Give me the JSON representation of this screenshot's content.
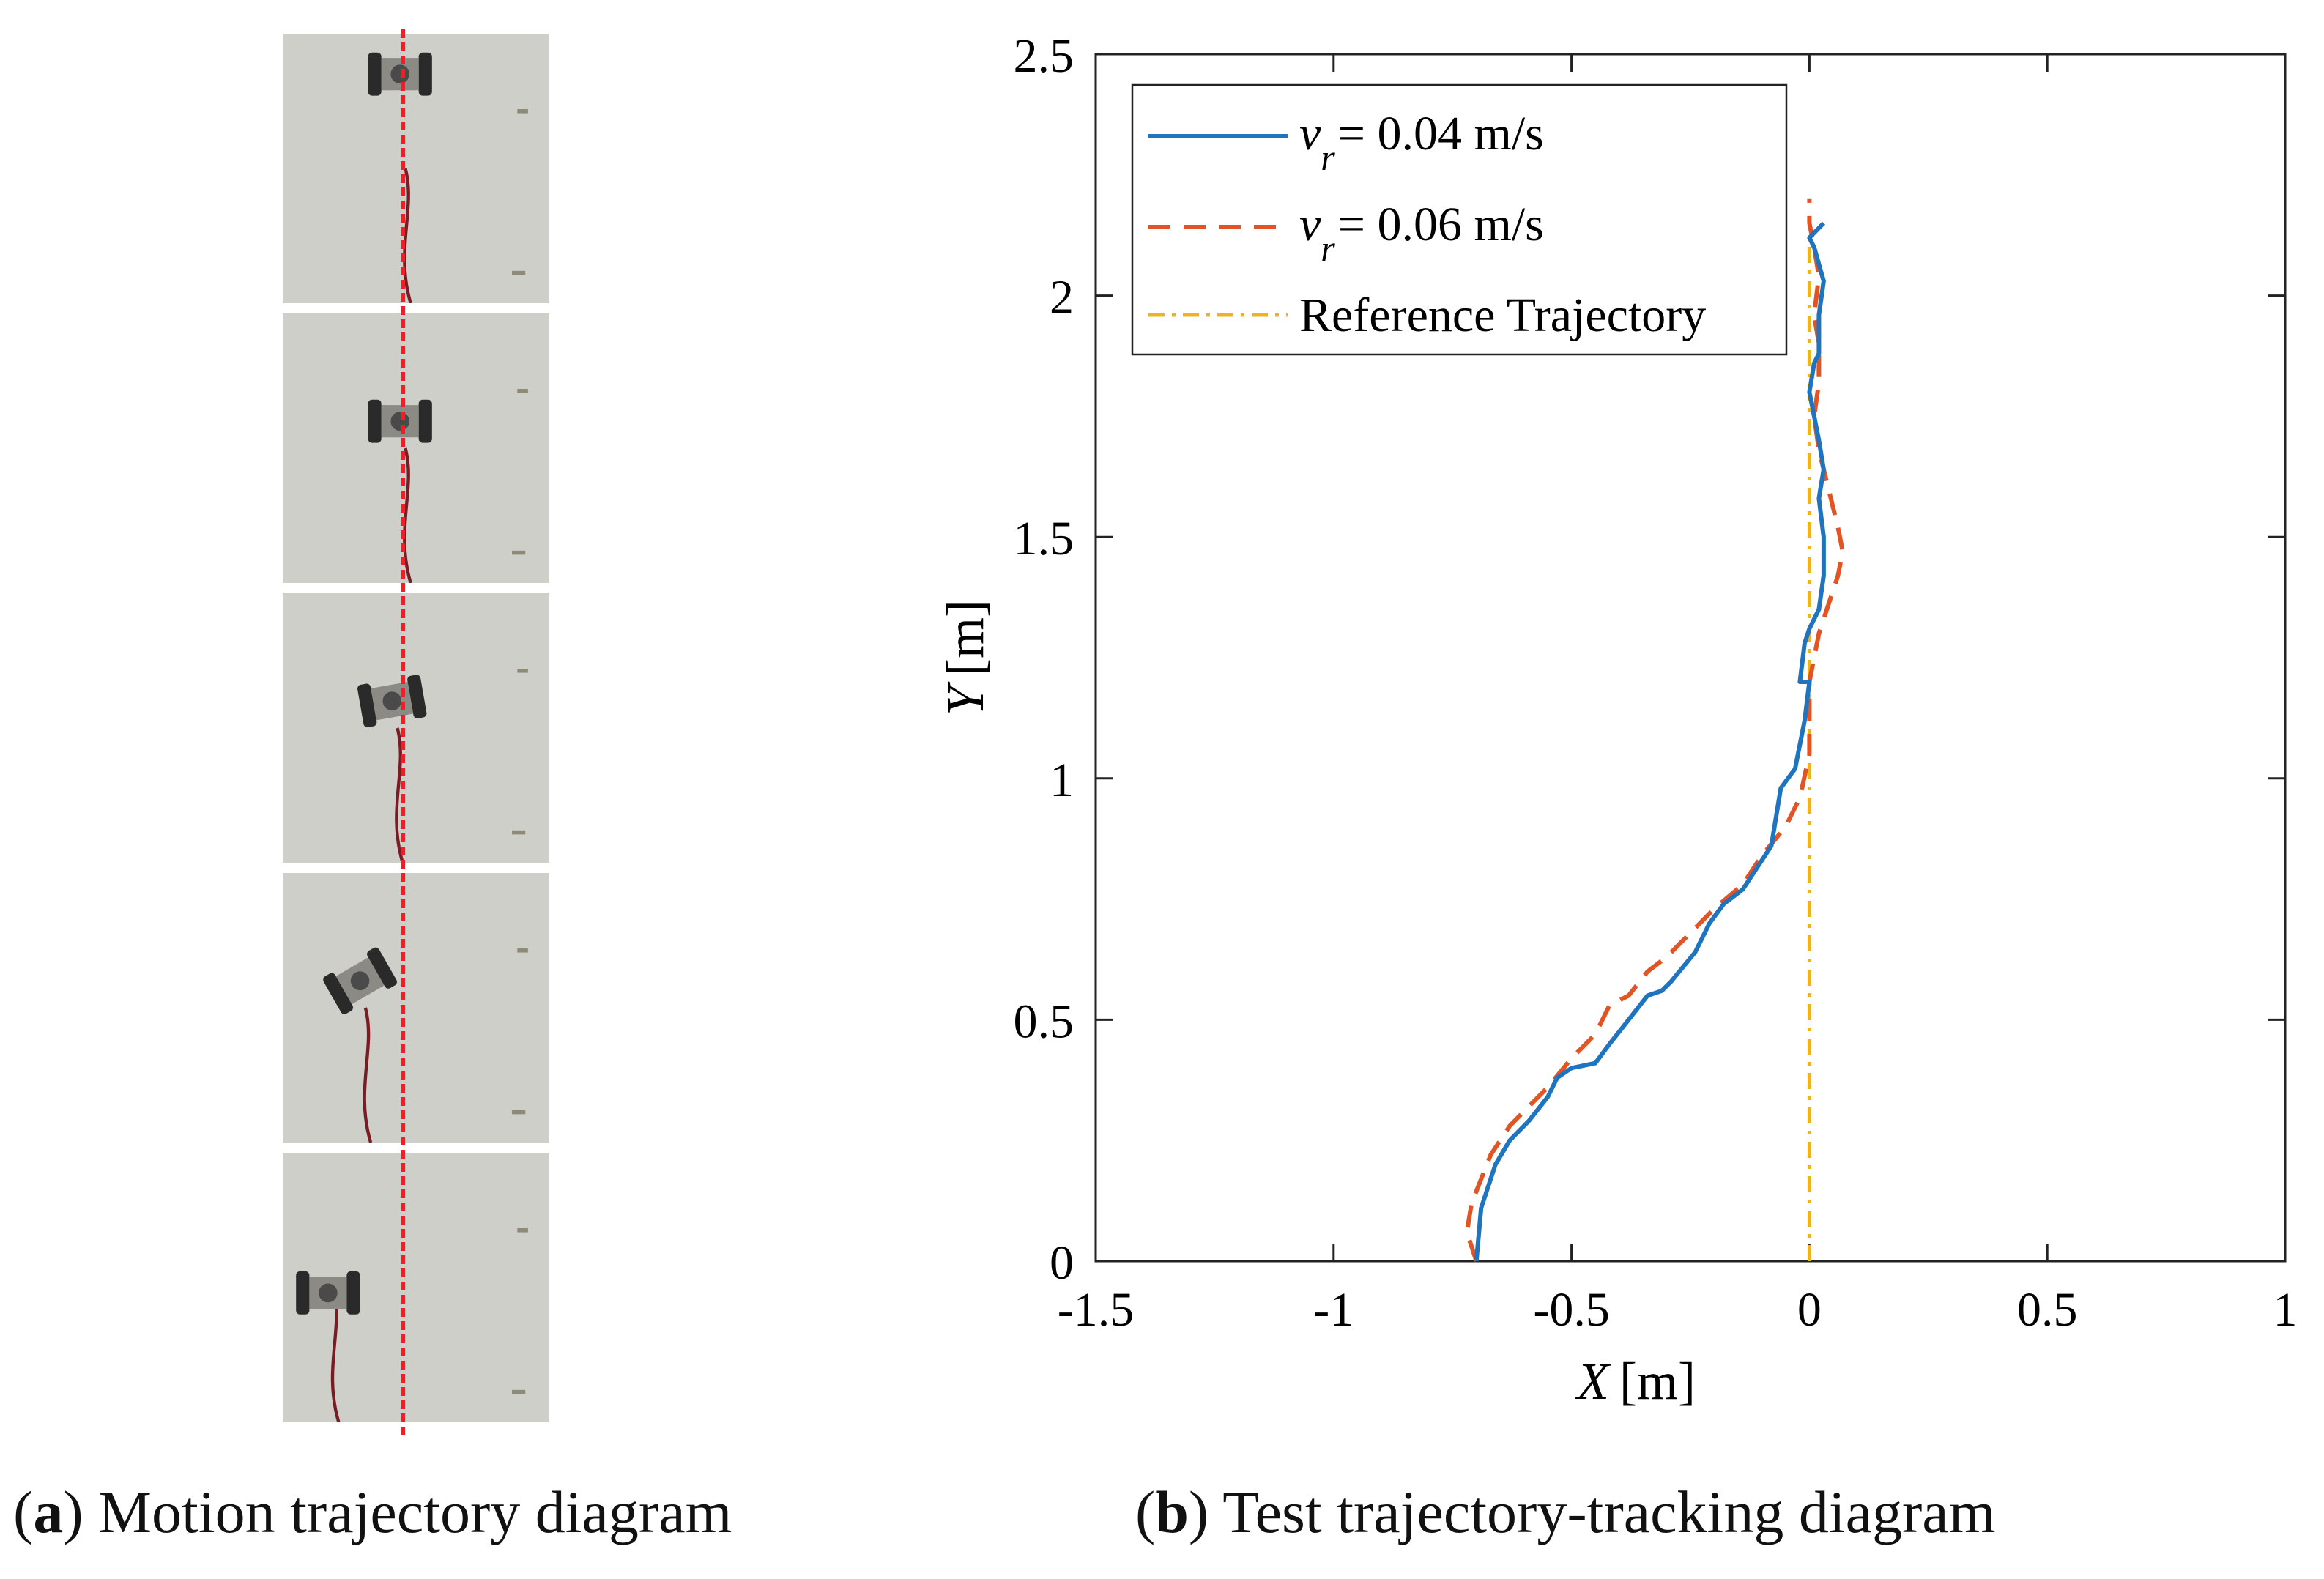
{
  "captions": {
    "a_letter": "a",
    "a_text": "Motion trajectory diagram",
    "b_letter": "b",
    "b_text": "Test trajectory-tracking diagram"
  },
  "photos": {
    "frames": [
      {
        "name": "frame-1",
        "robot_offset": 0.0,
        "robot_rotation": 0
      },
      {
        "name": "frame-2",
        "robot_offset": 0.0,
        "robot_rotation": 0
      },
      {
        "name": "frame-3",
        "robot_offset": -0.05,
        "robot_rotation": -10
      },
      {
        "name": "frame-4",
        "robot_offset": -0.25,
        "robot_rotation": -30
      },
      {
        "name": "frame-5",
        "robot_offset": -0.45,
        "robot_rotation": 0
      }
    ],
    "colors": {
      "wall": "#cfcfca",
      "path": "#e8212b",
      "cable": "#7a1c24",
      "robot": "#2a2a2a"
    }
  },
  "chart_data": {
    "type": "line",
    "xlabel_var": "X",
    "xlabel_unit": "[m]",
    "ylabel_var": "Y",
    "ylabel_unit": "[m]",
    "xlim": [
      -1.5,
      1
    ],
    "ylim": [
      0,
      2.5
    ],
    "xticks": [
      "-1.5",
      "-1",
      "-0.5",
      "0",
      "0.5",
      "1"
    ],
    "xtick_values": [
      -1.5,
      -1,
      -0.5,
      0,
      0.5,
      1
    ],
    "yticks": [
      "0",
      "0.5",
      "1",
      "1.5",
      "2",
      "2.5"
    ],
    "ytick_values": [
      0,
      0.5,
      1,
      1.5,
      2,
      2.5
    ],
    "legend_position": "top-left",
    "series": [
      {
        "name": "v_r = 0.04 m/s",
        "label_var": "v",
        "label_sub": "r",
        "label_value": "= 0.04 m/s",
        "color": "#1f74c0",
        "style": "solid",
        "x": [
          -0.7,
          -0.69,
          -0.66,
          -0.63,
          -0.59,
          -0.55,
          -0.53,
          -0.5,
          -0.45,
          -0.42,
          -0.38,
          -0.34,
          -0.31,
          -0.29,
          -0.24,
          -0.21,
          -0.18,
          -0.14,
          -0.1,
          -0.08,
          -0.07,
          -0.06,
          -0.03,
          -0.01,
          0.0,
          -0.02,
          -0.01,
          0.0,
          0.02,
          0.03,
          0.03,
          0.02,
          0.03,
          0.02,
          0.01,
          0.0,
          0.01,
          0.02,
          0.02,
          0.03,
          0.01,
          0.0,
          0.02,
          0.03
        ],
        "y": [
          0.0,
          0.11,
          0.2,
          0.25,
          0.29,
          0.34,
          0.38,
          0.4,
          0.41,
          0.45,
          0.5,
          0.55,
          0.56,
          0.58,
          0.64,
          0.7,
          0.74,
          0.77,
          0.83,
          0.86,
          0.92,
          0.98,
          1.02,
          1.12,
          1.2,
          1.2,
          1.28,
          1.31,
          1.35,
          1.42,
          1.5,
          1.58,
          1.64,
          1.7,
          1.75,
          1.8,
          1.86,
          1.88,
          1.96,
          2.03,
          2.1,
          2.12,
          2.14,
          2.15
        ]
      },
      {
        "name": "v_r = 0.06 m/s",
        "label_var": "v",
        "label_sub": "r",
        "label_value": "= 0.06 m/s",
        "color": "#e25424",
        "style": "dashed",
        "x": [
          -0.7,
          -0.72,
          -0.71,
          -0.67,
          -0.63,
          -0.6,
          -0.55,
          -0.5,
          -0.45,
          -0.42,
          -0.38,
          -0.34,
          -0.3,
          -0.25,
          -0.2,
          -0.14,
          -0.1,
          -0.05,
          -0.02,
          0.0,
          0.0,
          0.02,
          0.04,
          0.06,
          0.07,
          0.06,
          0.04,
          0.02,
          0.01,
          0.02,
          0.02,
          0.01,
          0.02,
          0.01,
          0.0,
          0.0
        ],
        "y": [
          0.0,
          0.06,
          0.12,
          0.22,
          0.28,
          0.31,
          0.36,
          0.42,
          0.47,
          0.53,
          0.55,
          0.6,
          0.63,
          0.68,
          0.73,
          0.78,
          0.84,
          0.9,
          0.96,
          1.05,
          1.2,
          1.3,
          1.36,
          1.42,
          1.47,
          1.52,
          1.6,
          1.68,
          1.75,
          1.82,
          1.9,
          1.96,
          2.04,
          2.1,
          2.15,
          2.2
        ]
      },
      {
        "name": "Reference Trajectory",
        "label_value": "Reference Trajectory",
        "color": "#eab424",
        "style": "dashdot",
        "x": [
          0,
          0
        ],
        "y": [
          0,
          2.13
        ]
      }
    ]
  }
}
